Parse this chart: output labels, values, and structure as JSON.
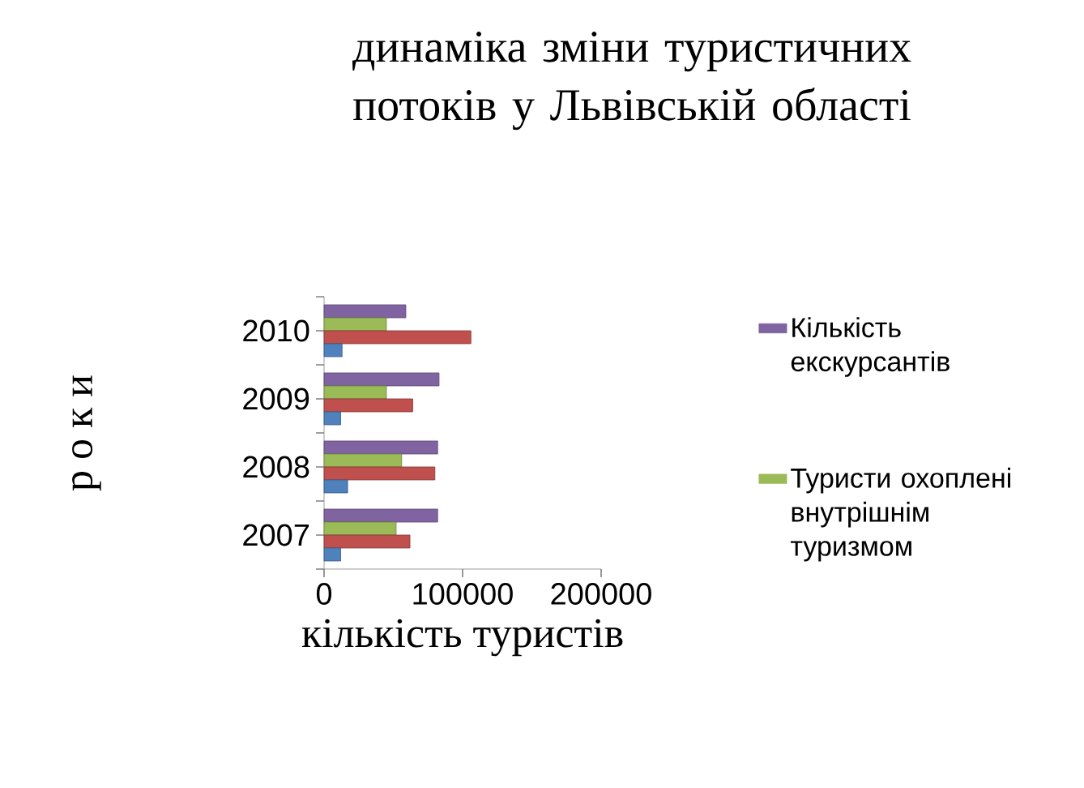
{
  "chart_data": {
    "type": "bar",
    "orientation": "horizontal",
    "title": "динаміка зміни туристичних потоків у Львівській області",
    "xlabel": "кількість туристів",
    "ylabel": "р о к и",
    "categories": [
      "2010",
      "2009",
      "2008",
      "2007"
    ],
    "series": [
      {
        "name": "Кількість екскурсантів",
        "color": "#8064a2",
        "values": [
          59000,
          83000,
          82000,
          82000
        ]
      },
      {
        "name": "Туристи охоплені внутрішнім туризмом",
        "color": "#9bbb59",
        "values": [
          45000,
          45000,
          56000,
          52000
        ]
      },
      {
        "color": "#c0504d",
        "values": [
          106000,
          64000,
          80000,
          62000
        ]
      },
      {
        "color": "#4f81bd",
        "values": [
          13000,
          12000,
          17000,
          12000
        ]
      }
    ],
    "xlim": [
      0,
      200000
    ],
    "xticks": [
      0,
      100000,
      200000
    ],
    "grid": false,
    "legend": "right"
  }
}
